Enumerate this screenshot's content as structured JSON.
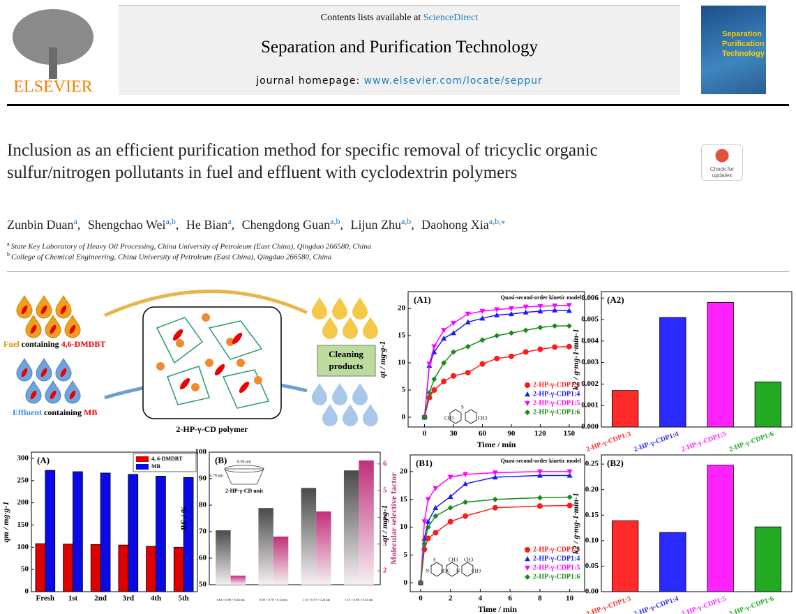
{
  "header": {
    "contents": "Contents lists available at",
    "sciencedirect": "ScienceDirect",
    "journal": "Separation and Purification Technology",
    "homepage_label": "journal homepage:",
    "homepage_url": "www.elsevier.com/locate/seppur",
    "publisher": "ELSEVIER",
    "cover": [
      "Separation",
      "Purification",
      "Technology"
    ]
  },
  "badge": "Check for updates",
  "title": "Inclusion as an efficient purification method for specific removal of tricyclic organic sulfur/nitrogen pollutants in fuel and effluent with cyclodextrin polymers",
  "authors": [
    {
      "name": "Zunbin Duan",
      "aff": "a"
    },
    {
      "name": "Shengchao Wei",
      "aff": "a,b"
    },
    {
      "name": "He Bian",
      "aff": "a"
    },
    {
      "name": "Chengdong Guan",
      "aff": "a,b"
    },
    {
      "name": "Lijun Zhu",
      "aff": "a,b"
    },
    {
      "name": "Daohong Xia",
      "aff": "a,b,⁎"
    }
  ],
  "affiliations": [
    {
      "key": "a",
      "text": "State Key Laboratory of Heavy Oil Processing, China University of Petroleum (East China), Qingdao 266580, China"
    },
    {
      "key": "b",
      "text": "College of Chemical Engineering, China University of Petroleum (East China), Qingdao 266580, China"
    }
  ],
  "schematic": {
    "fuel": [
      "Fuel",
      "containing",
      "4,6-DMDBT"
    ],
    "effluent": [
      "Effluent",
      "containing",
      "MB"
    ],
    "polymer": "2-HP-γ-CD polymer",
    "products": [
      "Cleaning",
      "products"
    ]
  },
  "chart_data": [
    {
      "type": "line",
      "panel": "(A1)",
      "annotation": "Quasi-second-order kinetic model",
      "xlabel": "Time / min",
      "ylabel": "qt / mg·g-1",
      "legend": "lower right",
      "structure_labels": [
        "CH3",
        "S",
        "CH3"
      ],
      "x": [
        0,
        5,
        10,
        20,
        30,
        45,
        60,
        75,
        90,
        105,
        120,
        135,
        150
      ],
      "xlim": [
        -17,
        166
      ],
      "xticks": [
        0,
        30,
        60,
        90,
        120,
        150
      ],
      "ylim": [
        -1.8,
        23.1
      ],
      "yticks": [
        0,
        5,
        10,
        15,
        20
      ],
      "series": [
        {
          "name": "2-HP-γ-CDP1:3",
          "color": "#ff1a1a",
          "marker": "circle",
          "values": [
            0,
            3.6,
            5,
            6.6,
            7.6,
            8.2,
            9.8,
            10.8,
            11.2,
            12,
            12.5,
            12.9,
            13
          ]
        },
        {
          "name": "2-HP-γ-CDP1:4",
          "color": "#1a1aff",
          "marker": "triangle-up",
          "values": [
            0,
            9.5,
            12,
            14.5,
            15.5,
            17.5,
            18.2,
            18.8,
            19,
            19.3,
            19.5,
            19.7,
            19.6
          ]
        },
        {
          "name": "2-HP-γ-CDP1:5",
          "color": "#ff00ff",
          "marker": "triangle-down",
          "values": [
            0,
            9.8,
            13,
            16,
            17.3,
            19,
            19.5,
            19.8,
            20,
            20.3,
            20.4,
            20.5,
            20.6
          ]
        },
        {
          "name": "2-HP-γ-CDP1:6",
          "color": "#1a8a1a",
          "marker": "diamond",
          "values": [
            0,
            4.5,
            7,
            10,
            12,
            13,
            14.2,
            15,
            15.5,
            16,
            16.5,
            16.8,
            16.8
          ]
        }
      ]
    },
    {
      "type": "bar",
      "panel": "(A2)",
      "ylabel": "k2 / g·mg-1·min-1",
      "categories": [
        "2-HP-γ-CDP1:3",
        "2-HP-γ-CDP1:4",
        "2-HP-γ-CDP1:5",
        "2-HP-γ-CDP1:6"
      ],
      "values": [
        0.0017,
        0.0051,
        0.0058,
        0.0021
      ],
      "colors": [
        "#ff2a2a",
        "#2a2aff",
        "#ff22ff",
        "#22aa22"
      ],
      "ylim": [
        0,
        0.0063
      ],
      "yticks": [
        {
          "value": 0,
          "label": "0.000"
        },
        0.001,
        0.002,
        0.003,
        0.004,
        0.005,
        0.006
      ]
    },
    {
      "type": "bar",
      "panel": "(A)",
      "ylabel": "qm / mg·g-1",
      "legend": "upper right",
      "categories": [
        "Fresh",
        "1st",
        "2nd",
        "3rd",
        "4th",
        "5th"
      ],
      "ylim": [
        0,
        314
      ],
      "yticks": [
        0,
        50,
        100,
        150,
        200,
        250,
        300
      ],
      "series": [
        {
          "name": "4, 6-DMDBT",
          "color": "#e00000",
          "values": [
            108,
            107,
            106,
            105,
            102,
            100
          ]
        },
        {
          "name": "MB",
          "color": "#0a0ae6",
          "values": [
            273,
            270,
            267,
            264,
            260,
            257
          ]
        }
      ]
    },
    {
      "type": "bar",
      "panel": "(B)",
      "ylabel": "RE / %",
      "y2label": "Molecular selective factor",
      "fill_style": "gradient",
      "categories": [
        "0.64 × 0.69 × 0.24 nm",
        "0.58 × 0.78 × 0.24 nm",
        "1.15 × 0.70 × 0.24 nm",
        "1.15 × 0.88 × 0.41 nm"
      ],
      "ylim": [
        50,
        100
      ],
      "yticks": [
        50,
        60,
        70,
        80,
        90,
        100
      ],
      "y2lim": [
        1.48,
        6.44
      ],
      "y2ticks": [
        2,
        3,
        4,
        5,
        6
      ],
      "inset": {
        "label": "2-HP-γ-CD unit",
        "width": "0.95 nm",
        "height": "0.79 nm"
      },
      "series": [
        {
          "color": "#4a4a4a",
          "values": [
            70.5,
            78.9,
            86.5,
            93.1
          ]
        },
        {
          "color": "#c0307a",
          "axis": "y2",
          "values": [
            1.82,
            3.28,
            4.22,
            6.13
          ]
        }
      ]
    },
    {
      "type": "line",
      "panel": "(B1)",
      "annotation": "Quasi-second-order kinetic model",
      "xlabel": "Time / min",
      "ylabel": "qt / mg·g-1",
      "legend": "lower right",
      "structure_labels": [
        "N",
        "S",
        "H3C",
        "CH3",
        "N",
        "CH3",
        "CH3"
      ],
      "x": [
        0,
        0.25,
        0.5,
        1,
        2,
        3,
        5,
        8,
        10
      ],
      "xlim": [
        -0.7,
        11
      ],
      "xticks": [
        0,
        2,
        4,
        6,
        8,
        10
      ],
      "ylim": [
        -1.6,
        23
      ],
      "yticks": [
        0,
        5,
        10,
        15,
        20
      ],
      "series": [
        {
          "name": "2-HP-γ-CDP1:3",
          "color": "#ff1a1a",
          "marker": "circle",
          "values": [
            0,
            6,
            8,
            9,
            11,
            12,
            13.5,
            13.8,
            13.9
          ]
        },
        {
          "name": "2-HP-γ-CDP1:4",
          "color": "#1a1aff",
          "marker": "triangle-up",
          "values": [
            0,
            8,
            11,
            13.5,
            15.5,
            17.8,
            19,
            19.3,
            19.3
          ]
        },
        {
          "name": "2-HP-γ-CDP1:5",
          "color": "#ff00ff",
          "marker": "triangle-down",
          "values": [
            0,
            11,
            15,
            17,
            19,
            19.5,
            19.8,
            20,
            20
          ]
        },
        {
          "name": "2-HP-γ-CDP1:6",
          "color": "#1a8a1a",
          "marker": "diamond",
          "values": [
            0,
            7,
            10,
            12,
            13.5,
            14.5,
            15,
            15.3,
            15.4
          ]
        }
      ]
    },
    {
      "type": "bar",
      "panel": "(B2)",
      "ylabel": "k2 / g·mg-1·min-1",
      "categories": [
        "2-HP-γ-CDP1:3",
        "2-HP-γ-CDP1:4",
        "2-HP-γ-CDP1:5",
        "2-HP-γ-CDP1:6"
      ],
      "values": [
        0.139,
        0.116,
        0.248,
        0.127
      ],
      "colors": [
        "#ff2a2a",
        "#2a2aff",
        "#ff22ff",
        "#22aa22"
      ],
      "ylim": [
        0,
        0.268
      ],
      "yticks": [
        {
          "value": 0,
          "label": "0.00"
        },
        0.05,
        {
          "value": 0.1,
          "label": "0.10"
        },
        0.15,
        {
          "value": 0.2,
          "label": "0.20"
        },
        0.25
      ]
    }
  ]
}
